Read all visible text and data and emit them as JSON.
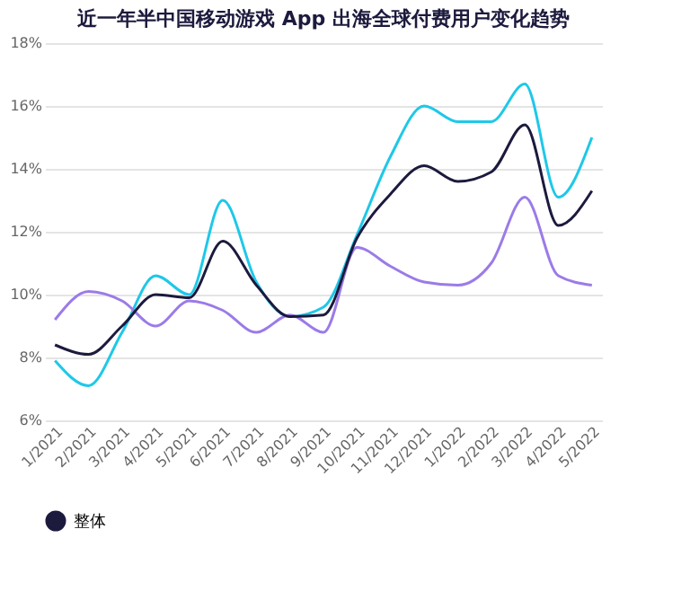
{
  "chart_data": {
    "type": "line",
    "title": "近一年半中国移动游戏 App 出海全球付费用户变化趋势",
    "categories": [
      "1/2021",
      "2/2021",
      "3/2021",
      "4/2021",
      "5/2021",
      "6/2021",
      "7/2021",
      "8/2021",
      "9/2021",
      "10/2021",
      "11/2021",
      "12/2021",
      "1/2022",
      "2/2022",
      "3/2022",
      "4/2022",
      "5/2022"
    ],
    "series": [
      {
        "color": "#1ec8e8",
        "values": [
          7.9,
          7.1,
          8.8,
          10.6,
          10.0,
          13.0,
          10.4,
          9.3,
          9.6,
          11.9,
          14.4,
          16.0,
          15.5,
          15.5,
          16.7,
          13.1,
          15.0
        ]
      },
      {
        "color": "#9b7be8",
        "values": [
          9.2,
          10.1,
          9.8,
          9.0,
          9.8,
          9.5,
          8.8,
          9.35,
          8.8,
          11.5,
          10.9,
          10.4,
          10.3,
          11.0,
          13.1,
          10.6,
          10.3
        ]
      },
      {
        "name": "整体",
        "color": "#1c1a3d",
        "values": [
          8.4,
          8.1,
          9.0,
          10.0,
          9.9,
          11.7,
          10.3,
          9.3,
          9.35,
          11.8,
          13.2,
          14.1,
          13.6,
          13.9,
          15.4,
          12.2,
          13.3
        ]
      }
    ],
    "ylim": [
      6,
      18
    ],
    "yticks": [
      {
        "value": 6,
        "label": "6%"
      },
      {
        "value": 8,
        "label": "8%"
      },
      {
        "value": 10,
        "label": "10%"
      },
      {
        "value": 12,
        "label": "12%"
      },
      {
        "value": 14,
        "label": "14%"
      },
      {
        "value": 16,
        "label": "16%"
      },
      {
        "value": 18,
        "label": "18%"
      }
    ],
    "grid": "y",
    "legend": "bottom",
    "marker": "none",
    "line_style": "solid"
  }
}
